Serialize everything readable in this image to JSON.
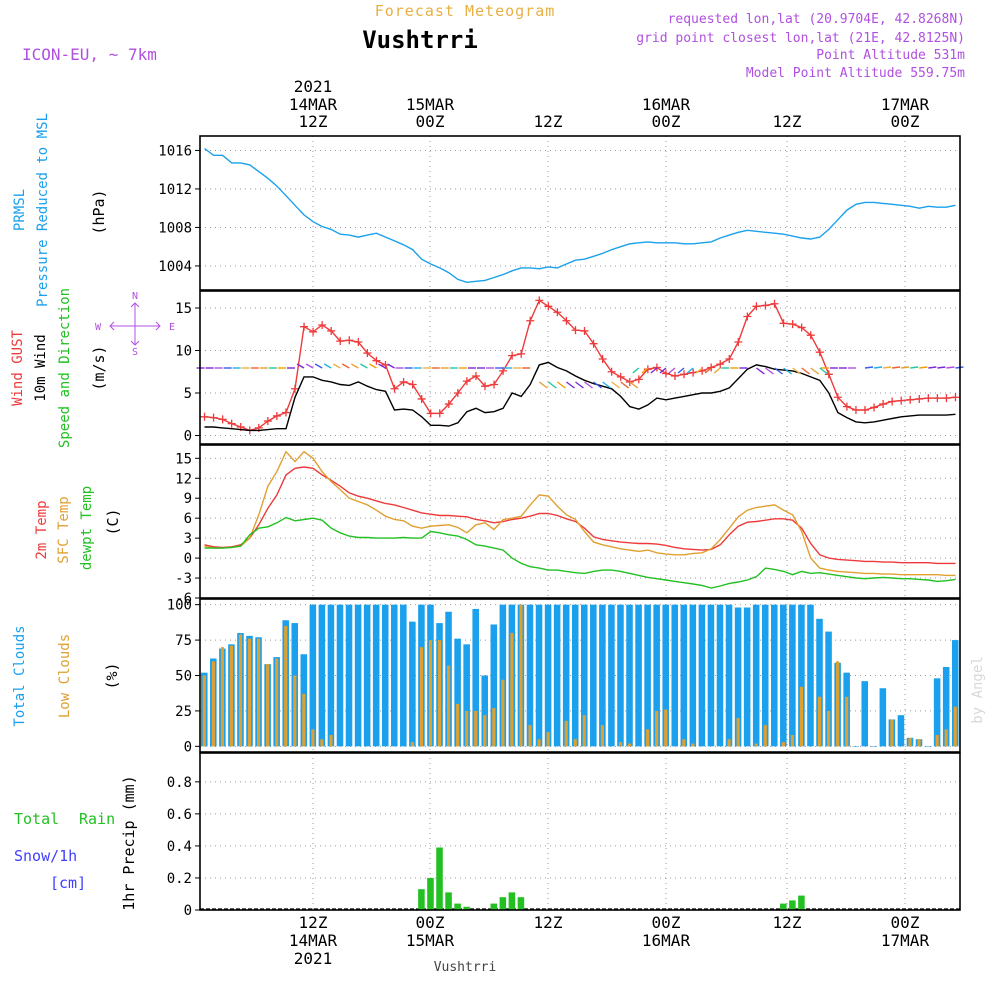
{
  "header": {
    "subtitle": "Forecast Meteogram",
    "location": "Vushtrri",
    "model": "ICON-EU, ~ 7km",
    "requested": "requested lon,lat (20.9704E, 42.8268N)",
    "grid_point": "grid point closest lon,lat (21E, 42.8125N)",
    "point_altitude": "Point Altitude 531m",
    "model_point_altitude": "Model Point Altitude 559.75m",
    "watermark": "by Angel",
    "footer_location": "Vushtrri"
  },
  "colors": {
    "blue": "#1aa0ec",
    "red": "#ee3a3a",
    "orange": "#e0a030",
    "green": "#22c022",
    "black": "#000000",
    "purple": "#b050e0",
    "tan": "#e8b044",
    "snow": "#4040ff"
  },
  "chart_data": [
    {
      "type": "line",
      "panel": "pressure",
      "ylabel_lines": [
        "PRMSL",
        "Pressure Reduced to MSL"
      ],
      "unit": "(hPa)",
      "yticks": [
        "1004",
        "1008",
        "1012",
        "1016"
      ],
      "ylim": [
        1001.5,
        1017.5
      ],
      "series": [
        {
          "name": "PRMSL",
          "color": "#1aa0ec",
          "values": [
            1016.2,
            1015.5,
            1015.5,
            1014.7,
            1014.7,
            1014.5,
            1013.8,
            1013.1,
            1012.3,
            1011.3,
            1010.3,
            1009.3,
            1008.6,
            1008.1,
            1007.8,
            1007.3,
            1007.2,
            1007.0,
            1007.2,
            1007.4,
            1007.0,
            1006.6,
            1006.2,
            1005.7,
            1004.7,
            1004.2,
            1003.8,
            1003.3,
            1002.6,
            1002.3,
            1002.4,
            1002.5,
            1002.8,
            1003.1,
            1003.5,
            1003.8,
            1003.8,
            1003.7,
            1003.9,
            1003.8,
            1004.2,
            1004.6,
            1004.7,
            1005.0,
            1005.3,
            1005.7,
            1006.0,
            1006.3,
            1006.4,
            1006.5,
            1006.4,
            1006.4,
            1006.4,
            1006.3,
            1006.3,
            1006.4,
            1006.5,
            1006.9,
            1007.2,
            1007.5,
            1007.7,
            1007.6,
            1007.5,
            1007.4,
            1007.3,
            1007.1,
            1006.9,
            1006.8,
            1007.0,
            1007.8,
            1008.8,
            1009.8,
            1010.4,
            1010.6,
            1010.6,
            1010.5,
            1010.4,
            1010.3,
            1010.2,
            1010.0,
            1010.2,
            1010.1,
            1010.1,
            1010.3
          ]
        }
      ]
    },
    {
      "type": "line",
      "panel": "wind",
      "ylabel_lines": [
        "Wind GUST",
        "10m Wind",
        "Speed and Direction"
      ],
      "unit": "(m/s)",
      "compass": [
        "N",
        "S",
        "W",
        "E"
      ],
      "yticks": [
        "0",
        "5",
        "10",
        "15"
      ],
      "ylim": [
        -1,
        17
      ],
      "series": [
        {
          "name": "Wind GUST",
          "color": "#ee3a3a",
          "marker": "+",
          "values": [
            2.2,
            2.1,
            1.9,
            1.4,
            1.0,
            0.6,
            0.9,
            1.7,
            2.3,
            2.7,
            5.5,
            12.8,
            12.2,
            13.0,
            12.3,
            11.1,
            11.2,
            11.0,
            9.7,
            8.8,
            8.3,
            5.5,
            6.3,
            6.0,
            4.3,
            2.6,
            2.6,
            3.7,
            5.0,
            6.4,
            7.0,
            5.8,
            6.0,
            7.6,
            9.4,
            9.6,
            13.5,
            15.9,
            15.2,
            14.5,
            13.5,
            12.4,
            12.3,
            10.8,
            9.0,
            7.5,
            6.9,
            6.3,
            6.6,
            7.8,
            8.0,
            7.3,
            7.0,
            7.2,
            7.4,
            7.6,
            8.0,
            8.4,
            9.0,
            11.0,
            14.0,
            15.2,
            15.3,
            15.5,
            13.2,
            13.1,
            12.7,
            11.8,
            9.8,
            7.2,
            4.5,
            3.4,
            3.0,
            3.0,
            3.3,
            3.7,
            4.0,
            4.1,
            4.2,
            4.3,
            4.4,
            4.4,
            4.4,
            4.5
          ]
        },
        {
          "name": "10m Wind",
          "color": "#000000",
          "values": [
            1.0,
            1.0,
            0.9,
            0.8,
            0.7,
            0.6,
            0.6,
            0.7,
            0.8,
            0.8,
            4.5,
            6.9,
            6.9,
            6.5,
            6.3,
            6.0,
            5.9,
            6.3,
            5.8,
            5.4,
            5.2,
            3.0,
            3.1,
            3.0,
            2.2,
            1.2,
            1.2,
            1.1,
            1.5,
            2.8,
            3.2,
            2.7,
            2.8,
            3.2,
            5.0,
            4.6,
            6.0,
            8.3,
            8.6,
            8.0,
            7.6,
            7.0,
            6.5,
            6.1,
            5.8,
            5.5,
            4.6,
            3.4,
            3.1,
            3.6,
            4.4,
            4.2,
            4.4,
            4.6,
            4.8,
            5.0,
            5.0,
            5.2,
            5.6,
            6.7,
            7.8,
            8.3,
            8.1,
            7.8,
            7.7,
            7.6,
            7.3,
            6.9,
            6.5,
            5.0,
            2.7,
            2.1,
            1.6,
            1.5,
            1.6,
            1.8,
            2.0,
            2.2,
            2.3,
            2.4,
            2.4,
            2.4,
            2.4,
            2.5
          ]
        }
      ]
    },
    {
      "type": "line",
      "panel": "temperature",
      "ylabel_lines": [
        "2m Temp",
        "SFC Temp",
        "dewpt Temp"
      ],
      "unit": "(C)",
      "yticks": [
        "-6",
        "-3",
        "0",
        "3",
        "6",
        "9",
        "12",
        "15"
      ],
      "ylim": [
        -6,
        17
      ],
      "series": [
        {
          "name": "2m Temp",
          "color": "#ee3a3a",
          "values": [
            2.0,
            1.7,
            1.6,
            1.7,
            2.0,
            3.0,
            5.0,
            7.5,
            9.5,
            12.5,
            13.5,
            13.7,
            13.5,
            12.5,
            11.7,
            10.8,
            9.8,
            9.3,
            9.0,
            8.6,
            8.2,
            8.0,
            7.6,
            7.2,
            6.8,
            6.6,
            6.4,
            6.4,
            6.3,
            6.2,
            5.8,
            5.6,
            5.3,
            5.5,
            5.8,
            6.0,
            6.3,
            6.7,
            6.7,
            6.4,
            5.9,
            5.5,
            4.5,
            3.2,
            2.8,
            2.6,
            2.4,
            2.3,
            2.2,
            2.2,
            2.1,
            1.9,
            1.6,
            1.4,
            1.3,
            1.2,
            1.3,
            2.0,
            3.5,
            4.8,
            5.4,
            5.5,
            5.7,
            5.9,
            5.9,
            5.7,
            4.5,
            2.2,
            0.5,
            0.0,
            -0.2,
            -0.3,
            -0.4,
            -0.5,
            -0.5,
            -0.6,
            -0.6,
            -0.7,
            -0.7,
            -0.7,
            -0.7,
            -0.8,
            -0.8,
            -0.8
          ]
        },
        {
          "name": "SFC Temp",
          "color": "#e0a030",
          "values": [
            1.8,
            1.5,
            1.5,
            1.6,
            1.8,
            3.0,
            6.5,
            10.8,
            13.0,
            16.0,
            14.5,
            16.0,
            15.0,
            13.0,
            11.5,
            10.3,
            9.0,
            8.5,
            8.0,
            7.2,
            6.3,
            5.8,
            5.6,
            4.8,
            4.5,
            4.8,
            4.9,
            5.0,
            4.6,
            3.8,
            5.0,
            5.3,
            4.3,
            5.8,
            6.0,
            6.3,
            8.0,
            9.5,
            9.3,
            7.8,
            6.5,
            5.8,
            4.0,
            2.4,
            2.0,
            1.7,
            1.4,
            1.2,
            1.0,
            1.2,
            0.8,
            0.6,
            0.5,
            0.5,
            0.7,
            0.8,
            1.4,
            2.8,
            4.5,
            6.2,
            7.2,
            7.6,
            7.8,
            8.0,
            7.2,
            6.5,
            4.0,
            0.0,
            -1.5,
            -1.8,
            -2.0,
            -2.1,
            -2.2,
            -2.3,
            -2.3,
            -2.4,
            -2.4,
            -2.5,
            -2.5,
            -2.5,
            -2.5,
            -2.5,
            -2.6,
            -2.6
          ]
        },
        {
          "name": "dewpt Temp",
          "color": "#22c022",
          "values": [
            1.5,
            1.5,
            1.5,
            1.6,
            1.8,
            3.5,
            4.5,
            4.7,
            5.3,
            6.1,
            5.6,
            5.8,
            6.0,
            5.7,
            4.5,
            3.8,
            3.3,
            3.1,
            3.1,
            3.0,
            3.0,
            3.0,
            3.1,
            3.0,
            3.0,
            4.0,
            3.8,
            3.5,
            3.3,
            2.8,
            2.0,
            1.8,
            1.5,
            1.2,
            0.0,
            -0.8,
            -1.3,
            -1.5,
            -1.8,
            -1.8,
            -2.0,
            -2.2,
            -2.3,
            -2.0,
            -1.8,
            -1.8,
            -2.0,
            -2.3,
            -2.6,
            -2.9,
            -3.1,
            -3.3,
            -3.5,
            -3.7,
            -3.9,
            -4.1,
            -4.5,
            -4.2,
            -3.8,
            -3.6,
            -3.3,
            -2.8,
            -1.5,
            -1.7,
            -2.0,
            -2.5,
            -2.0,
            -2.3,
            -2.2,
            -2.4,
            -2.6,
            -2.8,
            -3.0,
            -3.1,
            -3.0,
            -2.9,
            -3.0,
            -3.1,
            -3.1,
            -3.2,
            -3.3,
            -3.5,
            -3.4,
            -3.2
          ]
        }
      ]
    },
    {
      "type": "bar",
      "panel": "clouds",
      "ylabel_lines": [
        "Total Clouds",
        "Low Clouds"
      ],
      "unit": "(%)",
      "yticks": [
        "0",
        "25",
        "50",
        "75",
        "100"
      ],
      "ylim": [
        -4,
        104
      ],
      "series": [
        {
          "name": "Total Clouds",
          "color": "#1aa0ec",
          "values": [
            52,
            62,
            69,
            72,
            80,
            78,
            77,
            58,
            63,
            89,
            87,
            65,
            100,
            100,
            100,
            100,
            100,
            100,
            100,
            100,
            100,
            100,
            100,
            88,
            100,
            100,
            87,
            95,
            76,
            72,
            97,
            50,
            86,
            100,
            100,
            100,
            100,
            100,
            100,
            100,
            100,
            100,
            100,
            100,
            100,
            100,
            100,
            100,
            100,
            100,
            100,
            100,
            100,
            100,
            100,
            100,
            100,
            100,
            100,
            98,
            98,
            100,
            100,
            100,
            100,
            100,
            100,
            100,
            90,
            81,
            59,
            52,
            0,
            46,
            0,
            41,
            19,
            22,
            6,
            5,
            0,
            48,
            56,
            75
          ]
        },
        {
          "name": "Low Clouds",
          "color": "#e0a030",
          "values": [
            50,
            60,
            70,
            71,
            79,
            76,
            76,
            58,
            62,
            85,
            50,
            37,
            12,
            5,
            8,
            0,
            0,
            0,
            0,
            0,
            0,
            0,
            0,
            3,
            70,
            75,
            75,
            57,
            30,
            25,
            25,
            22,
            27,
            47,
            80,
            100,
            15,
            5,
            10,
            0,
            18,
            5,
            22,
            0,
            15,
            0,
            3,
            2,
            0,
            12,
            25,
            26,
            0,
            5,
            2,
            0,
            0,
            0,
            5,
            20,
            0,
            2,
            15,
            0,
            3,
            8,
            42,
            0,
            35,
            25,
            60,
            35,
            0,
            0,
            0,
            0,
            19,
            0,
            6,
            5,
            0,
            8,
            12,
            28
          ]
        }
      ]
    },
    {
      "type": "bar",
      "panel": "precip",
      "ylabel_lines": [
        "1hr Precip (mm)"
      ],
      "left_labels": [
        "Total",
        "Rain",
        "Snow/1h",
        "[cm]"
      ],
      "yticks": [
        "0",
        "0.2",
        "0.4",
        "0.6",
        "0.8"
      ],
      "ylim": [
        0,
        0.98
      ],
      "series": [
        {
          "name": "Total Rain",
          "color": "#22c022",
          "values": [
            0,
            0,
            0,
            0,
            0,
            0,
            0,
            0,
            0,
            0,
            0,
            0,
            0,
            0,
            0,
            0,
            0,
            0,
            0,
            0,
            0,
            0,
            0,
            0,
            0.13,
            0.2,
            0.39,
            0.11,
            0.04,
            0.02,
            0,
            0,
            0.04,
            0.08,
            0.11,
            0.08,
            0,
            0,
            0,
            0,
            0,
            0,
            0,
            0,
            0,
            0,
            0,
            0,
            0,
            0,
            0,
            0,
            0,
            0,
            0,
            0,
            0,
            0,
            0,
            0,
            0,
            0,
            0,
            0,
            0.04,
            0.06,
            0.09,
            0,
            0,
            0,
            0,
            0,
            0,
            0,
            0,
            0,
            0,
            0,
            0,
            0,
            0,
            0,
            0,
            0
          ]
        }
      ]
    }
  ],
  "time_axis": {
    "top_labels": [
      {
        "year": "2021",
        "date": "14MAR",
        "hour": "12Z"
      },
      {
        "date": "15MAR",
        "hour": "00Z"
      },
      {
        "hour": "12Z"
      },
      {
        "date": "16MAR",
        "hour": "00Z"
      },
      {
        "hour": "12Z"
      },
      {
        "date": "17MAR",
        "hour": "00Z"
      }
    ],
    "bottom_labels": [
      {
        "hour": "12Z",
        "date": "14MAR",
        "year": "2021"
      },
      {
        "hour": "00Z",
        "date": "15MAR"
      },
      {
        "hour": "12Z"
      },
      {
        "hour": "00Z",
        "date": "16MAR"
      },
      {
        "hour": "12Z"
      },
      {
        "hour": "00Z",
        "date": "17MAR"
      }
    ]
  }
}
